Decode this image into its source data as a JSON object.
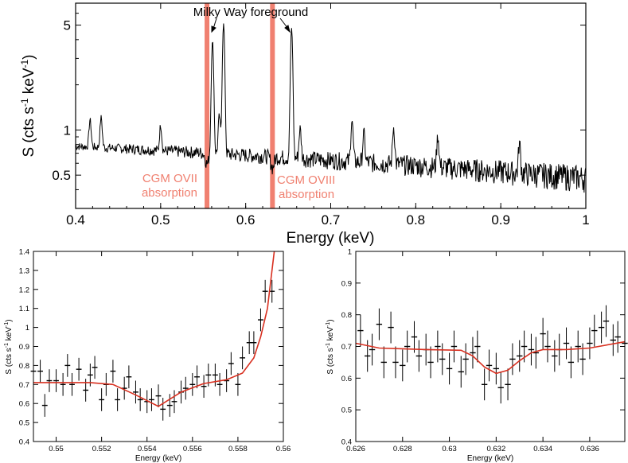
{
  "chart_data": [
    {
      "type": "line",
      "title": "",
      "xlabel": "Energy (keV)",
      "ylabel_main": "S (cts s",
      "ylabel_sup1": "-1",
      "ylabel_mid": " keV",
      "ylabel_sup2": "-1",
      "ylabel_end": ")",
      "xlim": [
        0.4,
        1.0
      ],
      "ylim": [
        0.3,
        7.0
      ],
      "yscale": "log",
      "xticks": [
        0.4,
        0.5,
        0.6,
        0.7,
        0.8,
        0.9,
        1.0
      ],
      "xtick_labels": [
        "0.4",
        "0.5",
        "0.6",
        "0.7",
        "0.8",
        "0.9",
        "1"
      ],
      "yticks": [
        0.5,
        1,
        5
      ],
      "ytick_labels": [
        "0.5",
        "1",
        "5"
      ],
      "continuum": {
        "start": 0.78,
        "end": 0.48,
        "noise": 0.06
      },
      "emission_lines": [
        {
          "x": 0.417,
          "amp": 0.4
        },
        {
          "x": 0.43,
          "amp": 0.45
        },
        {
          "x": 0.5,
          "amp": 0.35
        },
        {
          "x": 0.561,
          "amp": 3.2
        },
        {
          "x": 0.569,
          "amp": 0.55
        },
        {
          "x": 0.574,
          "amp": 4.4
        },
        {
          "x": 0.654,
          "amp": 4.1
        },
        {
          "x": 0.664,
          "amp": 0.38
        },
        {
          "x": 0.725,
          "amp": 0.55
        },
        {
          "x": 0.739,
          "amp": 0.35
        },
        {
          "x": 0.774,
          "amp": 0.45
        },
        {
          "x": 0.826,
          "amp": 0.35
        },
        {
          "x": 0.922,
          "amp": 0.3
        }
      ],
      "absorption_bands": [
        {
          "x": 0.5545,
          "label1": "CGM OVII",
          "label2": "absorption"
        },
        {
          "x": 0.6315,
          "label1": "CGM OVIII",
          "label2": "absorption"
        }
      ],
      "annotation": {
        "text": "Milky Way foreground",
        "targets": [
          0.561,
          0.654
        ]
      },
      "band_color": "#f08070"
    },
    {
      "type": "scatter",
      "xlabel": "Energy (keV)",
      "ylabel": "S (cts s-1 keV-1)",
      "xlim": [
        0.549,
        0.56
      ],
      "ylim": [
        0.4,
        1.4
      ],
      "xticks": [
        0.55,
        0.552,
        0.554,
        0.556,
        0.558,
        0.56
      ],
      "xtick_labels": [
        "0.55",
        "0.552",
        "0.554",
        "0.556",
        "0.558",
        "0.56"
      ],
      "yticks": [
        0.4,
        0.5,
        0.6,
        0.7,
        0.8,
        0.9,
        1.0,
        1.1,
        1.2,
        1.3,
        1.4
      ],
      "ytick_labels": [
        "0.4",
        "0.5",
        "0.6",
        "0.7",
        "0.8",
        "0.9",
        "1",
        "1.1",
        "1.2",
        "1.3",
        "1.4"
      ],
      "x": [
        0.549,
        0.5493,
        0.5495,
        0.5497,
        0.55,
        0.5503,
        0.5505,
        0.5507,
        0.551,
        0.5513,
        0.5515,
        0.5517,
        0.552,
        0.5522,
        0.5525,
        0.5527,
        0.553,
        0.5532,
        0.5535,
        0.5537,
        0.554,
        0.5542,
        0.5545,
        0.5547,
        0.555,
        0.5552,
        0.5555,
        0.5557,
        0.556,
        0.5562,
        0.5565,
        0.5567,
        0.557,
        0.5572,
        0.5575,
        0.5577,
        0.558,
        0.5582,
        0.5585,
        0.5587,
        0.559,
        0.5592,
        0.5595
      ],
      "y": [
        0.77,
        0.77,
        0.59,
        0.72,
        0.72,
        0.7,
        0.8,
        0.7,
        0.78,
        0.67,
        0.75,
        0.79,
        0.62,
        0.7,
        0.77,
        0.62,
        0.68,
        0.74,
        0.66,
        0.62,
        0.61,
        0.62,
        0.64,
        0.57,
        0.59,
        0.61,
        0.66,
        0.68,
        0.7,
        0.74,
        0.69,
        0.75,
        0.75,
        0.7,
        0.72,
        0.81,
        0.7,
        0.84,
        0.92,
        0.92,
        1.04,
        1.19,
        1.19
      ],
      "err": 0.06,
      "model_color": "#d83020",
      "model": {
        "x": [
          0.549,
          0.5515,
          0.5525,
          0.5535,
          0.5545,
          0.5555,
          0.5565,
          0.5575,
          0.5582,
          0.5587,
          0.559,
          0.5593,
          0.5596
        ],
        "y": [
          0.71,
          0.71,
          0.7,
          0.645,
          0.585,
          0.66,
          0.705,
          0.725,
          0.76,
          0.84,
          0.95,
          1.1,
          1.4
        ]
      }
    },
    {
      "type": "scatter",
      "xlabel": "Energy (keV)",
      "ylabel": "S (cts s-1 keV-1)",
      "xlim": [
        0.626,
        0.6375
      ],
      "ylim": [
        0.4,
        1.0
      ],
      "xticks": [
        0.626,
        0.628,
        0.63,
        0.632,
        0.634,
        0.636
      ],
      "xtick_labels": [
        "0.626",
        "0.628",
        "0.63",
        "0.632",
        "0.634",
        "0.636"
      ],
      "yticks": [
        0.4,
        0.5,
        0.6,
        0.7,
        0.8,
        0.9,
        1.0
      ],
      "ytick_labels": [
        "0.4",
        "0.5",
        "0.6",
        "0.7",
        "0.8",
        "0.9",
        "1"
      ],
      "x": [
        0.6262,
        0.6265,
        0.6267,
        0.627,
        0.6272,
        0.6275,
        0.6277,
        0.628,
        0.6282,
        0.6285,
        0.6287,
        0.629,
        0.6292,
        0.6295,
        0.6297,
        0.63,
        0.6302,
        0.6305,
        0.6307,
        0.631,
        0.6312,
        0.6315,
        0.6317,
        0.632,
        0.6322,
        0.6325,
        0.6327,
        0.633,
        0.6332,
        0.6335,
        0.6337,
        0.634,
        0.6342,
        0.6345,
        0.6347,
        0.635,
        0.6352,
        0.6355,
        0.6357,
        0.636,
        0.6362,
        0.6365,
        0.6367,
        0.637,
        0.6372,
        0.6375
      ],
      "y": [
        0.75,
        0.67,
        0.69,
        0.77,
        0.65,
        0.76,
        0.65,
        0.64,
        0.7,
        0.73,
        0.67,
        0.69,
        0.65,
        0.7,
        0.66,
        0.63,
        0.7,
        0.62,
        0.66,
        0.68,
        0.7,
        0.58,
        0.64,
        0.63,
        0.57,
        0.58,
        0.66,
        0.67,
        0.7,
        0.69,
        0.68,
        0.74,
        0.7,
        0.67,
        0.69,
        0.71,
        0.65,
        0.7,
        0.66,
        0.71,
        0.75,
        0.76,
        0.78,
        0.72,
        0.73,
        0.71
      ],
      "err": 0.05,
      "model_color": "#d83020",
      "model": {
        "x": [
          0.626,
          0.627,
          0.629,
          0.6305,
          0.631,
          0.6315,
          0.632,
          0.6325,
          0.633,
          0.6335,
          0.634,
          0.635,
          0.636,
          0.6375
        ],
        "y": [
          0.71,
          0.695,
          0.69,
          0.688,
          0.67,
          0.635,
          0.615,
          0.625,
          0.655,
          0.68,
          0.69,
          0.69,
          0.695,
          0.715
        ]
      }
    }
  ]
}
